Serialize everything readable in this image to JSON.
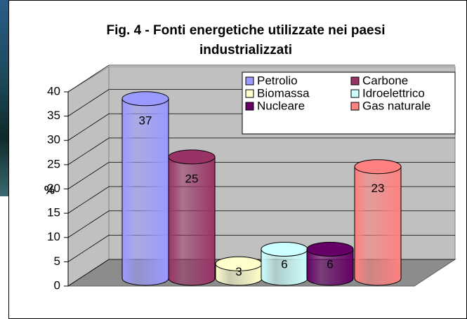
{
  "chart_data": {
    "type": "bar3d",
    "title": "Fig. 4 - Fonti energetiche utilizzate nei paesi industrializzati",
    "y_label": "%",
    "ylim": [
      0,
      40
    ],
    "yticks": [
      0,
      5,
      10,
      15,
      20,
      25,
      30,
      35,
      40
    ],
    "grid": true,
    "series": [
      {
        "name": "Petrolio",
        "color": "#9999ff",
        "values": [
          37
        ]
      },
      {
        "name": "Carbone",
        "color": "#993366",
        "values": [
          25
        ]
      },
      {
        "name": "Biomassa",
        "color": "#ffffcc",
        "values": [
          3
        ]
      },
      {
        "name": "Idroelettrico",
        "color": "#ccffff",
        "values": [
          6
        ]
      },
      {
        "name": "Nucleare",
        "color": "#660066",
        "values": [
          6
        ]
      },
      {
        "name": "Gas naturale",
        "color": "#ff8080",
        "values": [
          23
        ]
      }
    ]
  }
}
